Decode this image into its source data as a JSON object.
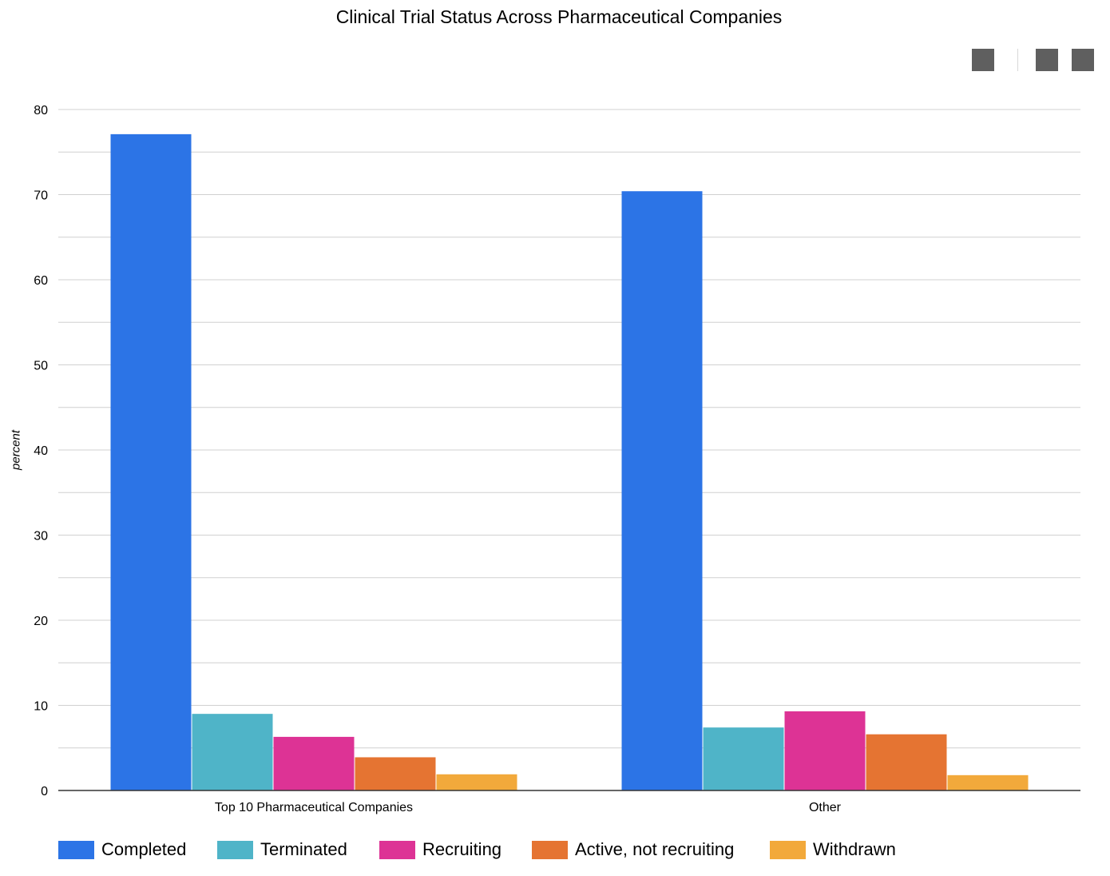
{
  "chart_data": {
    "type": "bar",
    "title": "Clinical Trial Status Across Pharmaceutical Companies",
    "xlabel": "",
    "ylabel": "percent",
    "ylim": [
      0,
      80
    ],
    "yticks": [
      "0",
      "10",
      "20",
      "30",
      "40",
      "50",
      "60",
      "70",
      "80"
    ],
    "grid": true,
    "legend_position": "bottom",
    "categories": [
      "Top 10 Pharmaceutical Companies",
      "Other"
    ],
    "series": [
      {
        "name": "Completed",
        "color": "#2c74e6",
        "values": [
          77.1,
          70.4
        ]
      },
      {
        "name": "Terminated",
        "color": "#4fb4c8",
        "values": [
          9.0,
          7.4
        ]
      },
      {
        "name": "Recruiting",
        "color": "#dd3395",
        "values": [
          6.3,
          9.3
        ]
      },
      {
        "name": "Active, not recruiting",
        "color": "#e57432",
        "values": [
          3.9,
          6.6
        ]
      },
      {
        "name": "Withdrawn",
        "color": "#f2a93b",
        "values": [
          1.9,
          1.8
        ]
      }
    ]
  },
  "toolbar": {
    "icons": [
      "toolbar-button-icon",
      "toolbar-button-icon",
      "toolbar-button-icon"
    ],
    "color": "#5f5f5f"
  }
}
